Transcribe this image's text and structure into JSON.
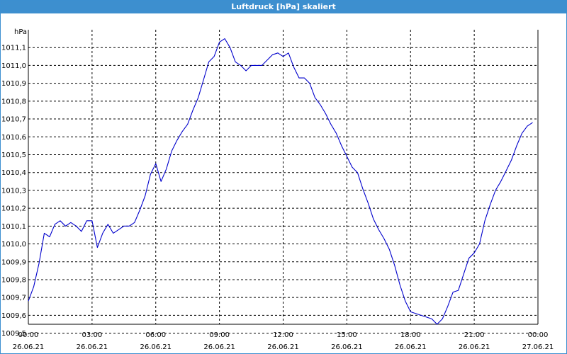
{
  "window": {
    "title": "Luftdruck [hPa] skaliert"
  },
  "colors": {
    "accent": "#3d8fcf",
    "line": "#0000cc",
    "grid": "#000000"
  },
  "chart_data": {
    "type": "line",
    "title": "Luftdruck [hPa] skaliert",
    "ylabel": "hPa",
    "xlabel": "",
    "ylim": [
      1009.55,
      1011.2
    ],
    "yticks": [
      "1009,5",
      "1009,6",
      "1009,7",
      "1009,8",
      "1009,9",
      "1010,0",
      "1010,1",
      "1010,2",
      "1010,3",
      "1010,4",
      "1010,5",
      "1010,6",
      "1010,7",
      "1010,8",
      "1010,9",
      "1011,0",
      "1011,1"
    ],
    "xticks": [
      {
        "time": "00:00",
        "date": "26.06.21"
      },
      {
        "time": "03:00",
        "date": "26.06.21"
      },
      {
        "time": "06:00",
        "date": "26.06.21"
      },
      {
        "time": "09:00",
        "date": "26.06.21"
      },
      {
        "time": "12:00",
        "date": "26.06.21"
      },
      {
        "time": "15:00",
        "date": "26.06.21"
      },
      {
        "time": "18:00",
        "date": "26.06.21"
      },
      {
        "time": "21:00",
        "date": "26.06.21"
      },
      {
        "time": "00:00",
        "date": "27.06.21"
      }
    ],
    "grid": true,
    "series": [
      {
        "x": [
          "2021-06-26 00:00",
          "2021-06-26 00:15",
          "2021-06-26 00:30",
          "2021-06-26 00:45",
          "2021-06-26 01:00",
          "2021-06-26 01:15",
          "2021-06-26 01:30",
          "2021-06-26 01:45",
          "2021-06-26 02:00",
          "2021-06-26 02:15",
          "2021-06-26 02:30",
          "2021-06-26 02:45",
          "2021-06-26 03:00",
          "2021-06-26 03:15",
          "2021-06-26 03:30",
          "2021-06-26 03:45",
          "2021-06-26 04:00",
          "2021-06-26 04:15",
          "2021-06-26 04:30",
          "2021-06-26 04:45",
          "2021-06-26 05:00",
          "2021-06-26 05:15",
          "2021-06-26 05:30",
          "2021-06-26 05:45",
          "2021-06-26 06:00",
          "2021-06-26 06:15",
          "2021-06-26 06:30",
          "2021-06-26 06:45",
          "2021-06-26 07:00",
          "2021-06-26 07:15",
          "2021-06-26 07:30",
          "2021-06-26 07:45",
          "2021-06-26 08:00",
          "2021-06-26 08:15",
          "2021-06-26 08:30",
          "2021-06-26 08:45",
          "2021-06-26 09:00",
          "2021-06-26 09:15",
          "2021-06-26 09:30",
          "2021-06-26 09:45",
          "2021-06-26 10:00",
          "2021-06-26 10:15",
          "2021-06-26 10:30",
          "2021-06-26 10:45",
          "2021-06-26 11:00",
          "2021-06-26 11:15",
          "2021-06-26 11:30",
          "2021-06-26 11:45",
          "2021-06-26 12:00",
          "2021-06-26 12:15",
          "2021-06-26 12:30",
          "2021-06-26 12:45",
          "2021-06-26 13:00",
          "2021-06-26 13:15",
          "2021-06-26 13:30",
          "2021-06-26 13:45",
          "2021-06-26 14:00",
          "2021-06-26 14:15",
          "2021-06-26 14:30",
          "2021-06-26 14:45",
          "2021-06-26 15:00",
          "2021-06-26 15:15",
          "2021-06-26 15:30",
          "2021-06-26 15:45",
          "2021-06-26 16:00",
          "2021-06-26 16:15",
          "2021-06-26 16:30",
          "2021-06-26 16:45",
          "2021-06-26 17:00",
          "2021-06-26 17:15",
          "2021-06-26 17:30",
          "2021-06-26 17:45",
          "2021-06-26 18:00",
          "2021-06-26 18:15",
          "2021-06-26 18:30",
          "2021-06-26 18:45",
          "2021-06-26 19:00",
          "2021-06-26 19:15",
          "2021-06-26 19:30",
          "2021-06-26 19:45",
          "2021-06-26 20:00",
          "2021-06-26 20:15",
          "2021-06-26 20:30",
          "2021-06-26 20:45",
          "2021-06-26 21:00",
          "2021-06-26 21:15",
          "2021-06-26 21:30",
          "2021-06-26 21:45",
          "2021-06-26 22:00",
          "2021-06-26 22:15",
          "2021-06-26 22:30",
          "2021-06-26 22:45",
          "2021-06-26 23:00",
          "2021-06-26 23:15",
          "2021-06-26 23:30",
          "2021-06-26 23:45"
        ],
        "y": [
          1009.68,
          1009.76,
          1009.89,
          1010.06,
          1010.04,
          1010.11,
          1010.13,
          1010.1,
          1010.12,
          1010.1,
          1010.07,
          1010.13,
          1010.13,
          1009.98,
          1010.06,
          1010.11,
          1010.06,
          1010.08,
          1010.1,
          1010.1,
          1010.12,
          1010.19,
          1010.27,
          1010.39,
          1010.45,
          1010.35,
          1010.42,
          1010.52,
          1010.58,
          1010.63,
          1010.67,
          1010.75,
          1010.82,
          1010.92,
          1011.02,
          1011.05,
          1011.13,
          1011.15,
          1011.1,
          1011.02,
          1011.0,
          1010.97,
          1011.0,
          1011.0,
          1011.0,
          1011.03,
          1011.06,
          1011.07,
          1011.05,
          1011.07,
          1010.99,
          1010.93,
          1010.93,
          1010.9,
          1010.82,
          1010.78,
          1010.73,
          1010.67,
          1010.62,
          1010.55,
          1010.49,
          1010.43,
          1010.4,
          1010.31,
          1010.23,
          1010.14,
          1010.08,
          1010.03,
          1009.97,
          1009.88,
          1009.77,
          1009.68,
          1009.62,
          1009.61,
          1009.6,
          1009.59,
          1009.58,
          1009.55,
          1009.58,
          1009.65,
          1009.73,
          1009.74,
          1009.83,
          1009.92,
          1009.95,
          1010.0,
          1010.13,
          1010.22,
          1010.3,
          1010.35,
          1010.41,
          1010.47,
          1010.55,
          1010.62,
          1010.66,
          1010.68
        ]
      }
    ]
  }
}
